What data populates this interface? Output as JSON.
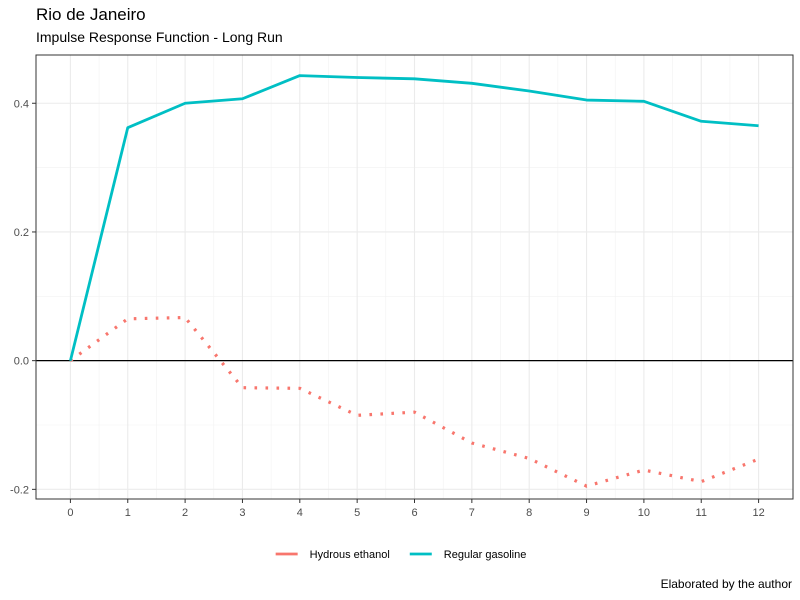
{
  "chart_data": {
    "type": "line",
    "title": "Rio de Janeiro",
    "subtitle": "Impulse Response Function - Long Run",
    "caption": "Elaborated by the author",
    "xlabel": "",
    "ylabel": "",
    "x": [
      0,
      1,
      2,
      3,
      4,
      5,
      6,
      7,
      8,
      9,
      10,
      11,
      12
    ],
    "xlim": [
      -0.6,
      12.6
    ],
    "ylim": [
      -0.215,
      0.475
    ],
    "x_ticks": [
      0,
      1,
      2,
      3,
      4,
      5,
      6,
      7,
      8,
      9,
      10,
      11,
      12
    ],
    "x_tick_labels": [
      "0",
      "1",
      "2",
      "3",
      "4",
      "5",
      "6",
      "7",
      "8",
      "9",
      "10",
      "11",
      "12"
    ],
    "y_ticks": [
      -0.2,
      0.0,
      0.2,
      0.4
    ],
    "y_tick_labels": [
      "-0.2",
      "0.0",
      "0.2",
      "0.4"
    ],
    "zero_line": true,
    "grid": true,
    "legend_position": "bottom",
    "series": [
      {
        "name": "Hydrous ethanol",
        "color": "#F8766D",
        "style": "dotted",
        "values": [
          0.0,
          0.065,
          0.067,
          -0.042,
          -0.043,
          -0.085,
          -0.08,
          -0.128,
          -0.152,
          -0.195,
          -0.17,
          -0.188,
          -0.153
        ]
      },
      {
        "name": "Regular gasoline",
        "color": "#00BFC4",
        "style": "solid",
        "values": [
          0.0,
          0.362,
          0.4,
          0.407,
          0.443,
          0.44,
          0.438,
          0.431,
          0.419,
          0.405,
          0.403,
          0.372,
          0.365
        ]
      }
    ]
  }
}
